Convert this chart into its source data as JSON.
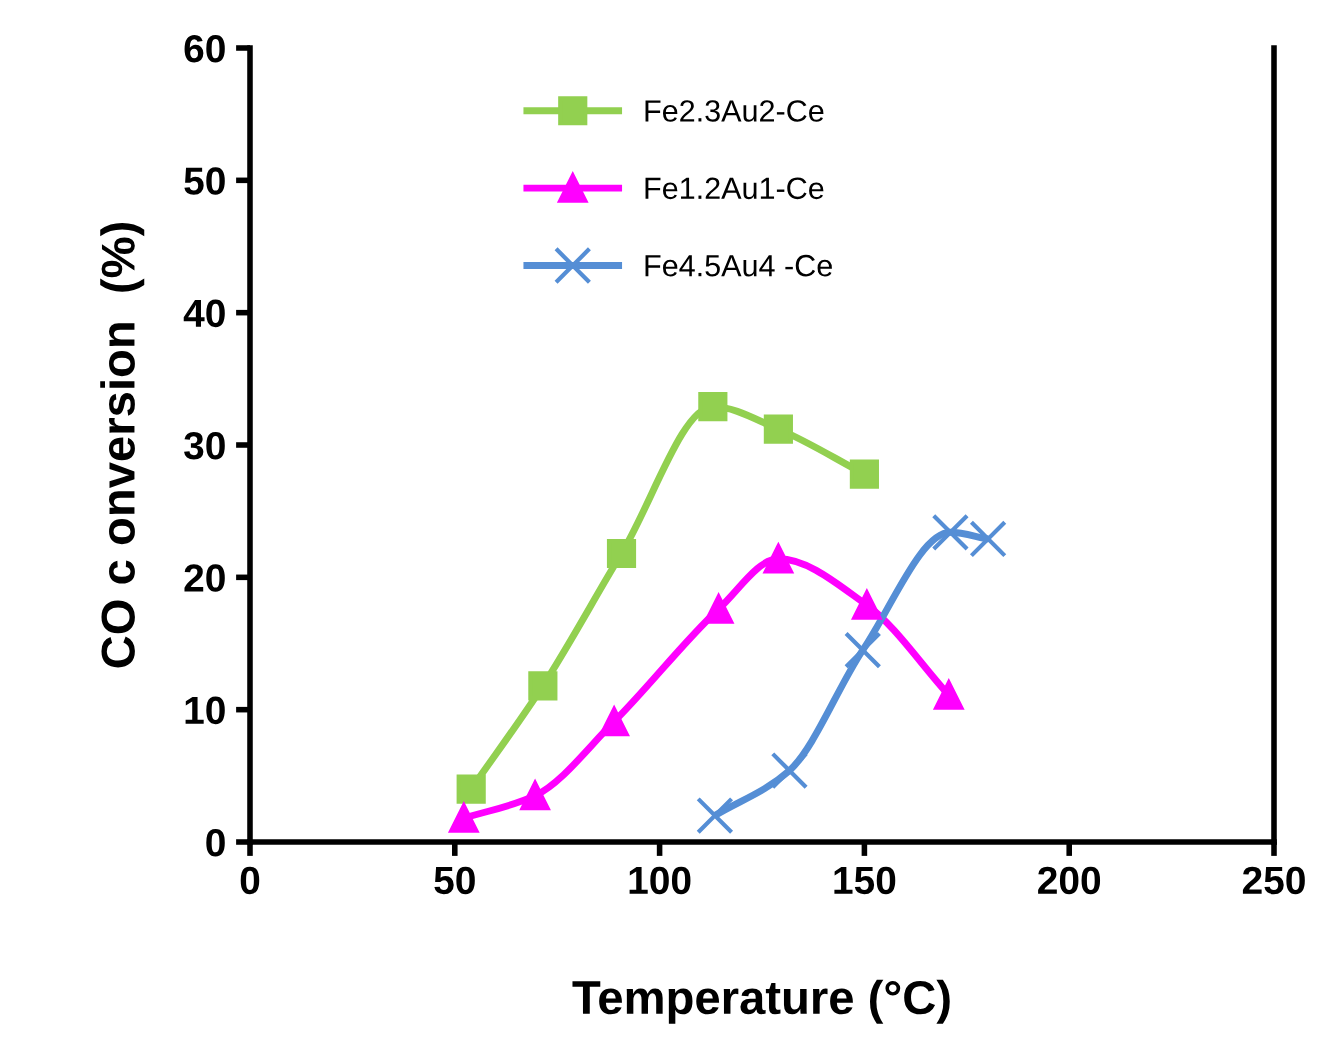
{
  "chart_data": {
    "type": "line",
    "xlabel": "Temperature (°C)",
    "ylabel": "CO c onversion  (%)",
    "xlim": [
      0,
      250
    ],
    "xticks": [
      0,
      50,
      100,
      150,
      200,
      250
    ],
    "ylim": [
      0,
      60
    ],
    "yticks": [
      0,
      10,
      20,
      30,
      40,
      50,
      60
    ],
    "grid": false,
    "legend": "top",
    "line_style": "solid",
    "series": [
      {
        "name": "Fe2.3Au2-Ce",
        "color": "#92d050",
        "marker": "square",
        "x": [
          54,
          71.5,
          90.7,
          113,
          129,
          150
        ],
        "values": [
          4.0,
          11.8,
          21.8,
          32.9,
          31.2,
          27.8
        ]
      },
      {
        "name": "Fe1.2Au1-Ce",
        "color": "#ff00ff",
        "marker": "triangle",
        "x": [
          52.2,
          69.6,
          88.9,
          114.4,
          129,
          150.6,
          170.6
        ],
        "values": [
          1.8,
          3.5,
          9.1,
          17.6,
          21.4,
          17.9,
          11.1
        ]
      },
      {
        "name": "Fe4.5Au4 -Ce",
        "color": "#558ed5",
        "marker": "cross",
        "x": [
          113.5,
          131.7,
          149.6,
          171,
          180.2
        ],
        "values": [
          2.0,
          5.4,
          14.5,
          23.4,
          22.9
        ]
      }
    ]
  }
}
